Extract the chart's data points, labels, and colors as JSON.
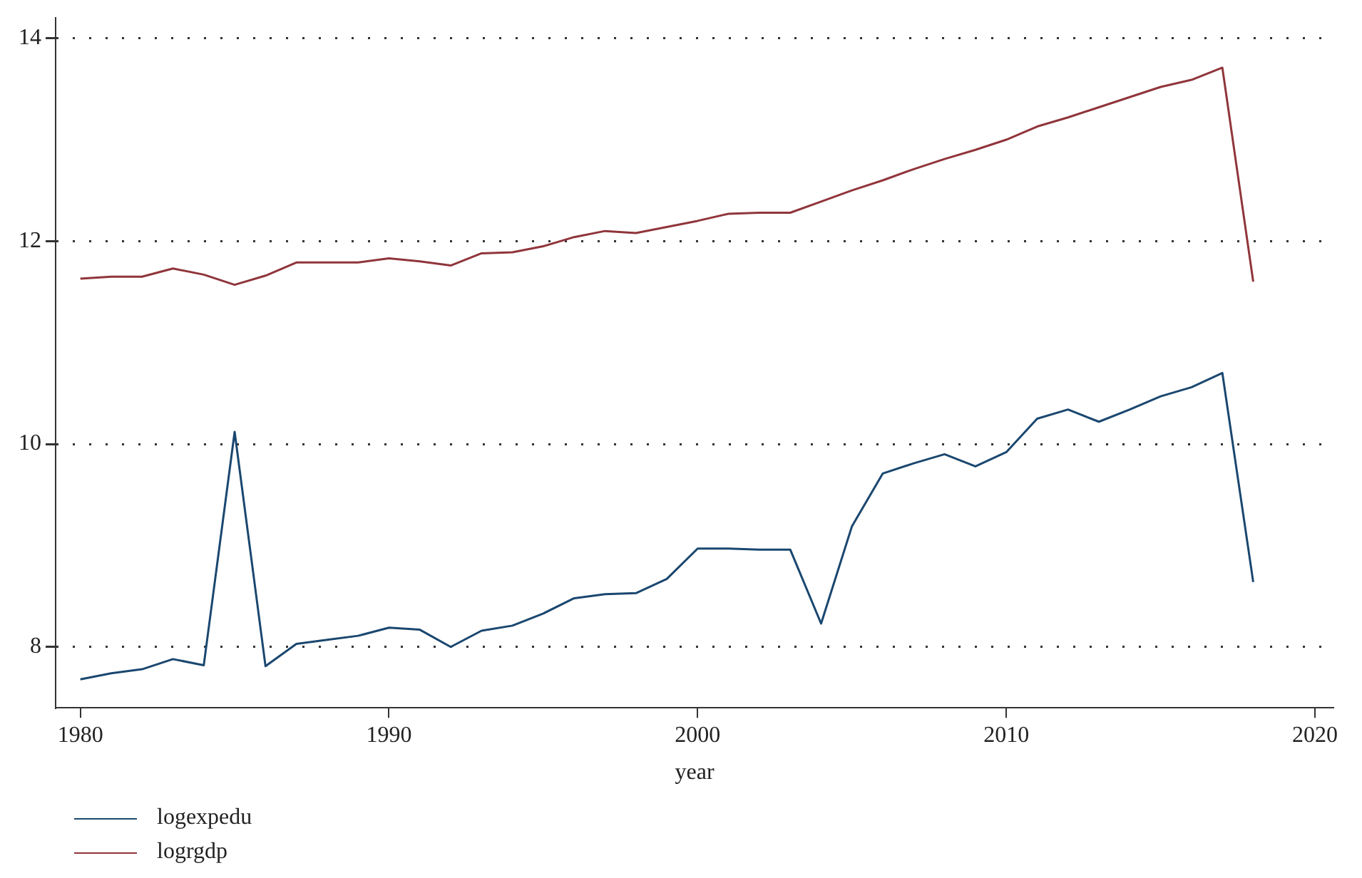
{
  "chart_data": {
    "type": "line",
    "xlabel": "year",
    "x": [
      1980,
      1981,
      1982,
      1983,
      1984,
      1985,
      1986,
      1987,
      1988,
      1989,
      1990,
      1991,
      1992,
      1993,
      1994,
      1995,
      1996,
      1997,
      1998,
      1999,
      2000,
      2001,
      2002,
      2003,
      2004,
      2005,
      2006,
      2007,
      2008,
      2009,
      2010,
      2011,
      2012,
      2013,
      2014,
      2015,
      2016,
      2017,
      2018
    ],
    "series": [
      {
        "name": "logexpedu",
        "color": "#1a476f",
        "values": [
          7.68,
          7.74,
          7.78,
          7.88,
          7.82,
          10.12,
          7.81,
          8.03,
          8.07,
          8.11,
          8.19,
          8.17,
          8.0,
          8.16,
          8.21,
          8.33,
          8.48,
          8.52,
          8.53,
          8.67,
          8.97,
          8.97,
          8.96,
          8.96,
          8.23,
          9.19,
          9.71,
          9.81,
          9.9,
          9.78,
          9.92,
          10.25,
          10.34,
          10.22,
          10.34,
          10.47,
          10.56,
          10.7,
          8.64
        ]
      },
      {
        "name": "logrgdp",
        "color": "#90353b",
        "values": [
          11.63,
          11.65,
          11.65,
          11.73,
          11.67,
          11.57,
          11.66,
          11.79,
          11.79,
          11.79,
          11.83,
          11.8,
          11.76,
          11.88,
          11.89,
          11.95,
          12.04,
          12.1,
          12.08,
          12.14,
          12.2,
          12.27,
          12.28,
          12.28,
          12.39,
          12.5,
          12.6,
          12.71,
          12.81,
          12.9,
          13.0,
          13.13,
          13.22,
          13.32,
          13.42,
          13.52,
          13.59,
          13.71,
          11.6
        ]
      }
    ],
    "xlim": [
      1979.2,
      2020.6
    ],
    "xticks": [
      1980,
      1990,
      2000,
      2010,
      2020
    ],
    "ylim": [
      7.4,
      14.2
    ],
    "yticks": [
      8,
      10,
      12,
      14
    ],
    "grid": "y",
    "legend": "bottom left",
    "marker": "none",
    "line_style": "solid"
  }
}
